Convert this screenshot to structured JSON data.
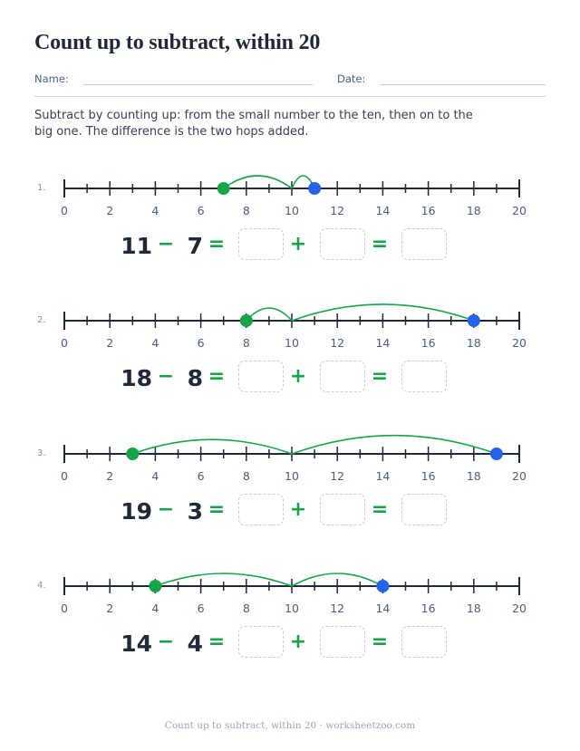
{
  "title": "Count up to subtract, within 20",
  "name_label": "Name:",
  "date_label": "Date:",
  "instructions": "Subtract by counting up: from the small number to the ten, then on to the big one. The difference is the two hops added.",
  "axis": {
    "min": 0,
    "max": 20,
    "labeled_ticks": [
      "0",
      "2",
      "4",
      "6",
      "8",
      "10",
      "12",
      "14",
      "16",
      "18",
      "20"
    ]
  },
  "colors": {
    "start_dot": "#16a34a",
    "end_dot": "#2563eb",
    "hop_arc": "#16a34a",
    "axis_line": "#1f2937"
  },
  "problems": [
    {
      "number": "1.",
      "big": "11",
      "small": "7",
      "minus": "−",
      "equals": "=",
      "plus": "+",
      "start": 7,
      "ten": 10,
      "end": 11
    },
    {
      "number": "2.",
      "big": "18",
      "small": "8",
      "minus": "−",
      "equals": "=",
      "plus": "+",
      "start": 8,
      "ten": 10,
      "end": 18
    },
    {
      "number": "3.",
      "big": "19",
      "small": "3",
      "minus": "−",
      "equals": "=",
      "plus": "+",
      "start": 3,
      "ten": 10,
      "end": 19
    },
    {
      "number": "4.",
      "big": "14",
      "small": "4",
      "minus": "−",
      "equals": "=",
      "plus": "+",
      "start": 4,
      "ten": 10,
      "end": 14
    }
  ],
  "footer": "Count up to subtract, within 20 · worksheetzoo.com"
}
